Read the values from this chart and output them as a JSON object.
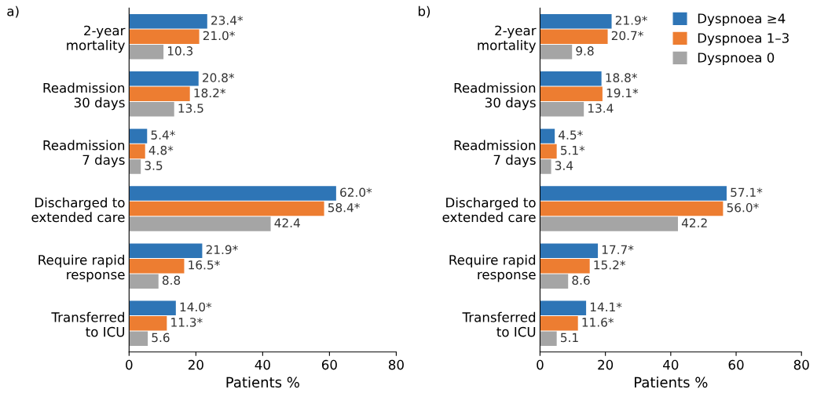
{
  "chart_data": [
    {
      "type": "bar",
      "orientation": "horizontal",
      "title": "a)",
      "xlabel": "Patients %",
      "categories": [
        "2-year\nmortality",
        "Readmission\n30 days",
        "Readmission\n7 days",
        "Discharged to\nextended care",
        "Require rapid\nresponse",
        "Transferred\nto ICU"
      ],
      "xlim": [
        0,
        80
      ],
      "xticks": [
        0,
        20,
        40,
        60,
        80
      ],
      "grid": false,
      "legend": false,
      "series": [
        {
          "color": "#2e75b6",
          "values": [
            23.4,
            20.8,
            5.4,
            62.0,
            21.9,
            14.0
          ],
          "value_labels": [
            "23.4*",
            "20.8*",
            "5.4*",
            "62.0*",
            "21.9*",
            "14.0*"
          ]
        },
        {
          "color": "#ed7d31",
          "values": [
            21.0,
            18.2,
            4.8,
            58.4,
            16.5,
            11.3
          ],
          "value_labels": [
            "21.0*",
            "18.2*",
            "4.8*",
            "58.4*",
            "16.5*",
            "11.3*"
          ]
        },
        {
          "color": "#a5a5a5",
          "values": [
            10.3,
            13.5,
            3.5,
            42.4,
            8.8,
            5.6
          ],
          "value_labels": [
            "10.3",
            "13.5",
            "3.5",
            "42.4",
            "8.8",
            "5.6"
          ]
        }
      ]
    },
    {
      "type": "bar",
      "orientation": "horizontal",
      "title": "b)",
      "xlabel": "Patients %",
      "categories": [
        "2-year\nmortality",
        "Readmission\n30 days",
        "Readmission\n7 days",
        "Discharged to\nextended care",
        "Require rapid\nresponse",
        "Transferred\nto ICU"
      ],
      "xlim": [
        0,
        80
      ],
      "xticks": [
        0,
        20,
        40,
        60,
        80
      ],
      "grid": false,
      "legend": "top right",
      "series": [
        {
          "name": "Dyspnoea ≥4",
          "color": "#2e75b6",
          "values": [
            21.9,
            18.8,
            4.5,
            57.1,
            17.7,
            14.1
          ],
          "value_labels": [
            "21.9*",
            "18.8*",
            "4.5*",
            "57.1*",
            "17.7*",
            "14.1*"
          ]
        },
        {
          "name": "Dyspnoea 1–3",
          "color": "#ed7d31",
          "values": [
            20.7,
            19.1,
            5.1,
            56.0,
            15.2,
            11.6
          ],
          "value_labels": [
            "20.7*",
            "19.1*",
            "5.1*",
            "56.0*",
            "15.2*",
            "11.6*"
          ]
        },
        {
          "name": "Dyspnoea 0",
          "color": "#a5a5a5",
          "values": [
            9.8,
            13.4,
            3.4,
            42.2,
            8.6,
            5.1
          ],
          "value_labels": [
            "9.8",
            "13.4",
            "3.4",
            "42.2",
            "8.6",
            "5.1"
          ]
        }
      ]
    }
  ]
}
